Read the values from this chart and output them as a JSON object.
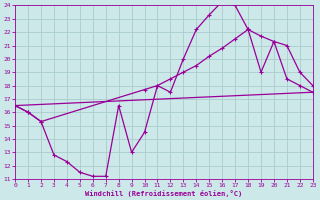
{
  "xlabel": "Windchill (Refroidissement éolien,°C)",
  "bg_color": "#cce8e8",
  "line_color": "#990099",
  "grid_color": "#aacccc",
  "xmin": 0,
  "xmax": 23,
  "ymin": 11,
  "ymax": 24,
  "line1_x": [
    0,
    1,
    2,
    3,
    4,
    5,
    6,
    7,
    8,
    9,
    10,
    11,
    12,
    13,
    14,
    15,
    16,
    17,
    18,
    19,
    20,
    21,
    22,
    23
  ],
  "line1_y": [
    16.5,
    16.0,
    15.3,
    12.8,
    12.3,
    11.5,
    11.2,
    11.2,
    16.5,
    13.0,
    14.5,
    18.0,
    17.5,
    20.0,
    22.2,
    23.3,
    24.3,
    24.0,
    22.2,
    19.0,
    21.3,
    18.5,
    18.0,
    17.5
  ],
  "line2_x": [
    0,
    1,
    2,
    10,
    11,
    12,
    13,
    14,
    15,
    16,
    17,
    18,
    19,
    20,
    21,
    22,
    23
  ],
  "line2_y": [
    16.5,
    16.0,
    15.3,
    17.7,
    18.0,
    18.5,
    19.0,
    19.5,
    20.2,
    20.8,
    21.5,
    22.2,
    21.7,
    21.3,
    21.0,
    19.0,
    18.0
  ],
  "line3_x": [
    0,
    23
  ],
  "line3_y": [
    16.5,
    17.5
  ]
}
